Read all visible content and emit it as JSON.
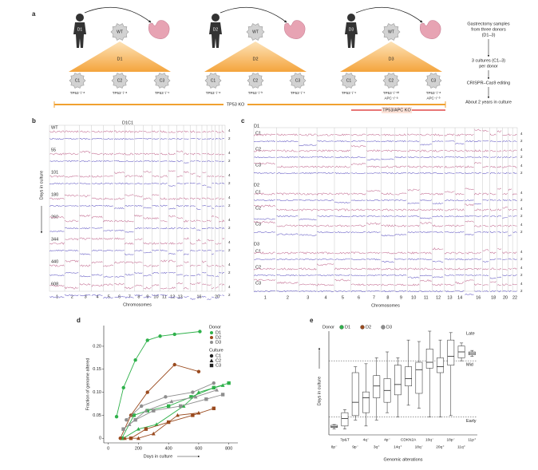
{
  "panel_labels": [
    "a",
    "b",
    "c",
    "d",
    "e"
  ],
  "panel_a": {
    "groups": [
      {
        "donor": "D1",
        "wt": "WT",
        "clones": [
          "C1",
          "C2",
          "C3"
        ],
        "genotypes": [
          [
            "TP53⁻/⁻ᵃ"
          ],
          [
            "TP53⁻/⁻ᵃ"
          ],
          [
            "TP53⁻/⁻ᶜ"
          ]
        ]
      },
      {
        "donor": "D2",
        "wt": "WT",
        "clones": [
          "C1",
          "C2",
          "C3"
        ],
        "genotypes": [
          [
            "TP53⁻/⁻ᵃ"
          ],
          [
            "TP53⁻/⁻ᵇ"
          ],
          [
            "TP53⁻/⁻ᶜ"
          ]
        ]
      },
      {
        "donor": "D3",
        "wt": "WT",
        "clones": [
          "C1",
          "C2",
          "C3"
        ],
        "genotypes": [
          [
            "TP53⁻/⁻ᶜ"
          ],
          [
            "TP53⁻/⁻ᵈᵈ",
            "APC⁻/⁻ᵃ"
          ],
          [
            "TP53⁻/⁻ᵃ",
            "APC⁻/⁻ᵇ"
          ]
        ]
      }
    ],
    "ko_bar": "TP53 KO",
    "apc_bar": "TP53/APC KO",
    "steps": [
      [
        "Gastrectomy samples",
        "from three donors",
        "(D1–3)"
      ],
      [
        "3 cultures (C1–3)",
        "per donor"
      ],
      [
        "CRISPR–Cas9 editing"
      ],
      [
        "About 2 years in culture"
      ]
    ]
  },
  "panel_b": {
    "title": "D1C1",
    "y_label": "Days in culture",
    "x_label": "Chromosomes",
    "rows": [
      "WT",
      "55",
      "101",
      "180",
      "260",
      "344",
      "440",
      "608"
    ],
    "copy_scale": [
      "4",
      "2"
    ],
    "chromosomes": [
      "1",
      "2",
      "3",
      "4",
      "5",
      "6",
      "7",
      "8",
      "9",
      "10",
      "11",
      "12",
      "13",
      null,
      null,
      "16",
      null,
      null,
      null,
      "20",
      null,
      null
    ]
  },
  "panel_c": {
    "groups": [
      {
        "donor": "D1",
        "rows": [
          "C1",
          "C2",
          "C3"
        ]
      },
      {
        "donor": "D2",
        "rows": [
          "C1",
          "C2",
          "C3"
        ]
      },
      {
        "donor": "D3",
        "rows": [
          "C1",
          "C2",
          "C3"
        ]
      }
    ],
    "copy_scale": [
      "4",
      "2"
    ],
    "x_label": "Chromosomes",
    "chromosomes": [
      "1",
      "2",
      "3",
      "4",
      "5",
      "6",
      "7",
      "8",
      "9",
      "10",
      "11",
      "12",
      "13",
      "14",
      null,
      "16",
      null,
      "18",
      null,
      "20",
      null,
      "22"
    ]
  },
  "chart_data": [
    {
      "type": "line",
      "x_label": "Days in culture",
      "y_label": "Fraction of genome altered",
      "xlim": [
        -30,
        860
      ],
      "ylim": [
        -0.01,
        0.245
      ],
      "xticks": [
        0,
        200,
        400,
        600,
        800
      ],
      "yticks": [
        0,
        0.05,
        {
          "value": 0.1,
          "label": "0.10"
        },
        0.15,
        {
          "value": 0.2,
          "label": "0.20"
        }
      ],
      "legend": {
        "donor_title": "Donor",
        "donors": [
          {
            "name": "D1",
            "color": "#2fb14b"
          },
          {
            "name": "D2",
            "color": "#9a4a1e"
          },
          {
            "name": "D3",
            "color": "#8e8e8e"
          }
        ],
        "culture_title": "Culture",
        "cultures": [
          {
            "name": "C1",
            "marker": "circle"
          },
          {
            "name": "C2",
            "marker": "triangle"
          },
          {
            "name": "C3",
            "marker": "square"
          }
        ]
      },
      "series": [
        {
          "color": "#2fb14b",
          "marker": "circle",
          "x": [
            55,
            101,
            180,
            260,
            344,
            440,
            608
          ],
          "values": [
            0.047,
            0.11,
            0.17,
            0.213,
            0.222,
            0.226,
            0.232
          ]
        },
        {
          "color": "#2fb14b",
          "marker": "triangle",
          "x": [
            100,
            200,
            320,
            500,
            600,
            760
          ],
          "values": [
            0,
            0.02,
            0.03,
            0.07,
            0.1,
            0.115
          ]
        },
        {
          "color": "#2fb14b",
          "marker": "square",
          "x": [
            90,
            170,
            260,
            400,
            550,
            700,
            800
          ],
          "values": [
            0,
            0.05,
            0.06,
            0.07,
            0.09,
            0.11,
            0.12
          ]
        },
        {
          "color": "#9a4a1e",
          "marker": "circle",
          "x": [
            80,
            150,
            260,
            440,
            600
          ],
          "values": [
            0,
            0.05,
            0.1,
            0.16,
            0.145
          ]
        },
        {
          "color": "#9a4a1e",
          "marker": "triangle",
          "x": [
            110,
            200,
            300,
            460,
            600
          ],
          "values": [
            0,
            0,
            0.01,
            0.05,
            0.055
          ]
        },
        {
          "color": "#9a4a1e",
          "marker": "square",
          "x": [
            150,
            250,
            400,
            560,
            700
          ],
          "values": [
            0,
            0.02,
            0.035,
            0.05,
            0.065
          ]
        },
        {
          "color": "#8e8e8e",
          "marker": "circle",
          "x": [
            120,
            220,
            380,
            560,
            700
          ],
          "values": [
            0.04,
            0.07,
            0.09,
            0.1,
            0.12
          ]
        },
        {
          "color": "#8e8e8e",
          "marker": "triangle",
          "x": [
            140,
            250,
            420,
            580,
            720
          ],
          "values": [
            0.03,
            0.06,
            0.08,
            0.09,
            0.105
          ]
        },
        {
          "color": "#8e8e8e",
          "marker": "square",
          "x": [
            100,
            180,
            300,
            480,
            650,
            760
          ],
          "values": [
            0.02,
            0.04,
            0.06,
            0.07,
            0.085,
            0.095
          ]
        }
      ]
    },
    {
      "type": "box",
      "x_label": "Genomic alterations",
      "y_label": "Days in culture",
      "ylim": [
        0,
        700
      ],
      "legend_title": "Donor",
      "legend": [
        {
          "name": "D1",
          "color": "#2fb14b"
        },
        {
          "name": "D2",
          "color": "#9a4a1e"
        },
        {
          "name": "D3",
          "color": "#8e8e8e"
        }
      ],
      "reference_lines": [
        {
          "value": 500,
          "label": "Mid"
        },
        {
          "value": 120,
          "label": "Early"
        }
      ],
      "annotation": "Late",
      "categories": [
        "8p⁻",
        "7p&T",
        "9p⁻",
        "4q⁻",
        "3q⁺",
        "4p⁻",
        "14q⁺",
        "CDKN2A",
        "18q⁻",
        "10q⁻",
        "20q⁺",
        "18p⁻",
        "11q⁺",
        "11p⁺"
      ],
      "boxes": [
        {
          "min": 40,
          "q1": 50,
          "median": 55,
          "q3": 65,
          "max": 70
        },
        {
          "min": 40,
          "q1": 60,
          "median": 110,
          "q3": 150,
          "max": 170
        },
        {
          "min": 100,
          "q1": 130,
          "median": 220,
          "q3": 420,
          "max": 460
        },
        {
          "min": 60,
          "q1": 150,
          "median": 250,
          "q3": 290,
          "max": 480
        },
        {
          "min": 100,
          "q1": 250,
          "median": 330,
          "q3": 400,
          "max": 520
        },
        {
          "min": 150,
          "q1": 220,
          "median": 300,
          "q3": 380,
          "max": 560
        },
        {
          "min": 120,
          "q1": 270,
          "median": 340,
          "q3": 470,
          "max": 520
        },
        {
          "min": 200,
          "q1": 330,
          "median": 380,
          "q3": 460,
          "max": 640
        },
        {
          "min": 180,
          "q1": 280,
          "median": 440,
          "q3": 490,
          "max": 630
        },
        {
          "min": 120,
          "q1": 450,
          "median": 490,
          "q3": 580,
          "max": 700
        },
        {
          "min": 120,
          "q1": 420,
          "median": 460,
          "q3": 520,
          "max": 640
        },
        {
          "min": 130,
          "q1": 470,
          "median": 530,
          "q3": 640,
          "max": 690
        },
        {
          "min": 500,
          "q1": 520,
          "median": 560,
          "q3": 600,
          "max": 620
        },
        {
          "min": 530,
          "q1": 540,
          "median": 550,
          "q3": 560,
          "max": 570
        }
      ]
    }
  ]
}
